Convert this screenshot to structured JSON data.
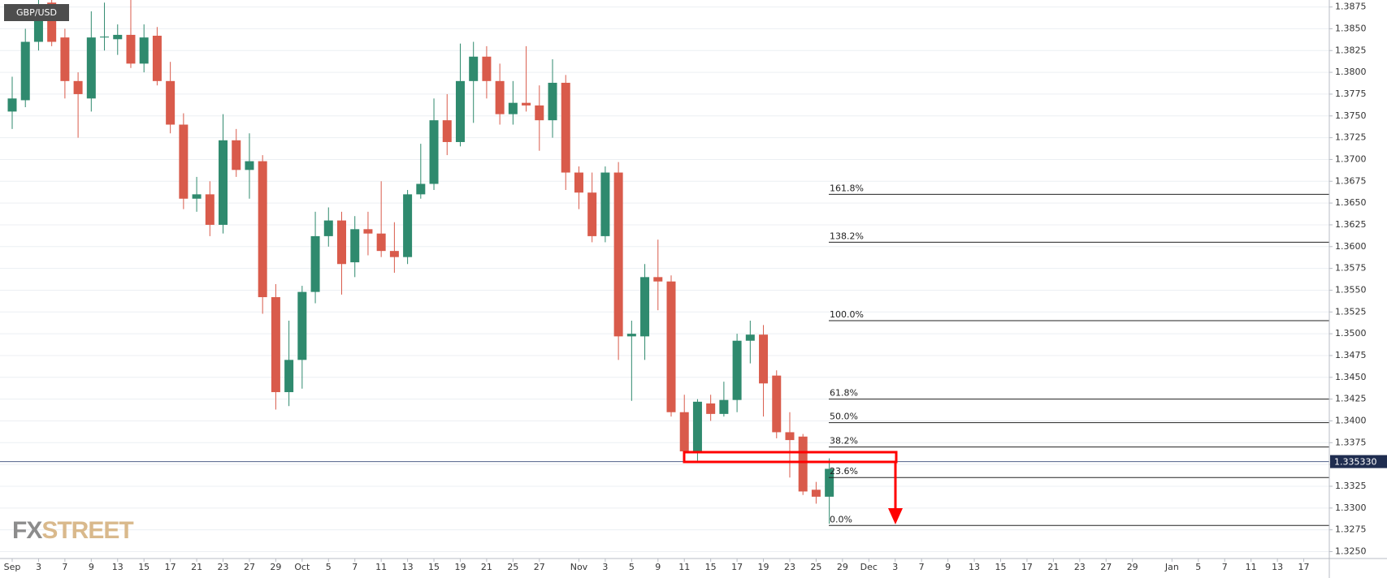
{
  "chart_data": {
    "type": "candlestick",
    "title": "GBP/USD",
    "watermark": [
      "FX",
      "STREET"
    ],
    "categories": [
      "Sep",
      null,
      "3",
      null,
      "7",
      null,
      "9",
      null,
      "13",
      null,
      "15",
      null,
      "17",
      null,
      "21",
      null,
      "23",
      null,
      "27",
      null,
      "29",
      null,
      "Oct",
      null,
      "5",
      null,
      "7",
      null,
      "11",
      null,
      "13",
      null,
      "15",
      null,
      "19",
      null,
      "21",
      null,
      "25",
      null,
      "27",
      null,
      null,
      "Nov",
      null,
      "3",
      null,
      "5",
      null,
      "9",
      null,
      "11",
      null,
      "15",
      null,
      "17",
      null,
      "19",
      null,
      "23",
      null,
      "25",
      null,
      "29",
      null,
      "Dec",
      null,
      "3",
      null,
      "7",
      null,
      "9",
      null,
      "13",
      null,
      "15",
      null,
      "17",
      null,
      "21",
      null,
      "23",
      null,
      "27",
      null,
      "29",
      null,
      null,
      "Jan",
      null,
      "5",
      null,
      "7",
      null,
      "11",
      null,
      "13",
      null,
      "17"
    ],
    "open": [
      1.3755,
      1.3768,
      1.3835,
      1.388,
      1.384,
      1.379,
      1.377,
      1.384,
      1.3838,
      1.3843,
      1.381,
      1.3842,
      1.379,
      1.374,
      1.3655,
      1.366,
      1.3625,
      1.3722,
      1.3688,
      1.3698,
      1.3542,
      1.3433,
      1.347,
      1.3548,
      1.3612,
      1.363,
      1.3582,
      1.362,
      1.3615,
      1.3595,
      1.3588,
      1.366,
      1.3672,
      1.3745,
      1.372,
      1.379,
      1.3818,
      1.379,
      1.3752,
      1.3765,
      1.3762,
      1.3745,
      1.3788,
      1.3685,
      1.3662,
      1.3612,
      1.3685,
      1.3497,
      1.3497,
      1.3565,
      1.356,
      1.341,
      1.3365,
      1.342,
      1.3408,
      1.3424,
      1.3492,
      1.3499,
      1.3452,
      1.3387,
      1.3382,
      1.3321,
      1.3313,
      null,
      null,
      null,
      null,
      null,
      null,
      null,
      null,
      null,
      null,
      null,
      null,
      null,
      null,
      null,
      null,
      null,
      null,
      null,
      null,
      null,
      null,
      null,
      null,
      null,
      null,
      null,
      null,
      null,
      null,
      null,
      null,
      null,
      null,
      null,
      null
    ],
    "high": [
      1.3795,
      1.385,
      1.3888,
      1.3895,
      1.385,
      1.38,
      1.387,
      1.388,
      1.3855,
      1.389,
      1.3855,
      1.3852,
      1.3812,
      1.3753,
      1.368,
      1.3675,
      1.3752,
      1.3735,
      1.373,
      1.3705,
      1.3557,
      1.3515,
      1.3555,
      1.364,
      1.3645,
      1.364,
      1.3635,
      1.364,
      1.3675,
      1.3628,
      1.3665,
      1.3718,
      1.377,
      1.3775,
      1.3833,
      1.3835,
      1.383,
      1.381,
      1.379,
      1.383,
      1.3785,
      1.3815,
      1.3797,
      1.3692,
      1.3685,
      1.3692,
      1.3697,
      1.3515,
      1.358,
      1.3608,
      1.3567,
      1.343,
      1.3425,
      1.343,
      1.3445,
      1.35,
      1.3515,
      1.351,
      1.3458,
      1.341,
      1.3385,
      1.333,
      1.3357,
      null,
      null,
      null,
      null,
      null,
      null,
      null,
      null,
      null,
      null,
      null,
      null,
      null,
      null,
      null,
      null,
      null,
      null,
      null,
      null,
      null,
      null,
      null,
      null,
      null,
      null,
      null,
      null,
      null,
      null,
      null,
      null,
      null,
      null,
      null,
      null
    ],
    "low": [
      1.3735,
      1.376,
      1.3825,
      1.383,
      1.377,
      1.3725,
      1.3755,
      1.3825,
      1.382,
      1.3805,
      1.38,
      1.3785,
      1.373,
      1.3643,
      1.364,
      1.3612,
      1.3615,
      1.368,
      1.3655,
      1.3523,
      1.3413,
      1.3417,
      1.3437,
      1.3535,
      1.36,
      1.3545,
      1.3565,
      1.359,
      1.3588,
      1.357,
      1.358,
      1.3655,
      1.3665,
      1.3705,
      1.3715,
      1.3742,
      1.377,
      1.374,
      1.374,
      1.3755,
      1.371,
      1.3725,
      1.3665,
      1.3643,
      1.3605,
      1.3605,
      1.347,
      1.3423,
      1.347,
      1.3527,
      1.3405,
      1.3353,
      1.3353,
      1.34,
      1.3405,
      1.341,
      1.3466,
      1.3405,
      1.338,
      1.3335,
      1.3315,
      1.3305,
      1.3282,
      null,
      null,
      null,
      null,
      null,
      null,
      null,
      null,
      null,
      null,
      null,
      null,
      null,
      null,
      null,
      null,
      null,
      null,
      null,
      null,
      null,
      null,
      null,
      null,
      null,
      null,
      null,
      null,
      null,
      null,
      null,
      null,
      null,
      null,
      null,
      null
    ],
    "close": [
      1.377,
      1.3835,
      1.3865,
      1.3835,
      1.379,
      1.3775,
      1.384,
      1.3841,
      1.3843,
      1.381,
      1.384,
      1.379,
      1.374,
      1.3655,
      1.366,
      1.3625,
      1.3722,
      1.3688,
      1.3698,
      1.3542,
      1.3433,
      1.347,
      1.3548,
      1.3612,
      1.363,
      1.358,
      1.362,
      1.3615,
      1.3595,
      1.3588,
      1.366,
      1.3672,
      1.3745,
      1.372,
      1.379,
      1.3818,
      1.379,
      1.3752,
      1.3765,
      1.3762,
      1.3745,
      1.3788,
      1.3685,
      1.3662,
      1.3612,
      1.3685,
      1.3497,
      1.35,
      1.3565,
      1.356,
      1.341,
      1.3365,
      1.3422,
      1.3408,
      1.3424,
      1.3492,
      1.3499,
      1.3443,
      1.3387,
      1.3378,
      1.3319,
      1.3313,
      1.3345,
      null,
      null,
      null,
      null,
      null,
      null,
      null,
      null,
      null,
      null,
      null,
      null,
      null,
      null,
      null,
      null,
      null,
      null,
      null,
      null,
      null,
      null,
      null,
      null,
      null,
      null,
      null,
      null,
      null,
      null,
      null,
      null,
      null,
      null,
      null,
      null
    ],
    "up_color": "#2f8a6e",
    "down_color": "#d95b4b",
    "ylim": [
      1.3243,
      1.3883
    ],
    "yticks": [
      {
        "value": 1.325,
        "label": "1.3250"
      },
      1.3275,
      {
        "value": 1.33,
        "label": "1.3300"
      },
      1.3325,
      {
        "value": 1.335,
        "label": "1.3350"
      },
      1.3375,
      {
        "value": 1.34,
        "label": "1.3400"
      },
      1.3425,
      {
        "value": 1.345,
        "label": "1.3450"
      },
      1.3475,
      {
        "value": 1.35,
        "label": "1.3500"
      },
      1.3525,
      {
        "value": 1.355,
        "label": "1.3550"
      },
      1.3575,
      {
        "value": 1.36,
        "label": "1.3600"
      },
      1.3625,
      {
        "value": 1.365,
        "label": "1.3650"
      },
      1.3675,
      {
        "value": 1.37,
        "label": "1.3700"
      },
      1.3725,
      {
        "value": 1.375,
        "label": "1.3750"
      },
      1.3775,
      {
        "value": 1.38,
        "label": "1.3800"
      },
      1.3825,
      {
        "value": 1.385,
        "label": "1.3850"
      },
      1.3875
    ],
    "grid": true,
    "price_line": {
      "value": 1.33533,
      "label": "1.335330"
    },
    "fib_levels": [
      {
        "label": "161.8%",
        "value": 1.366
      },
      {
        "label": "138.2%",
        "value": 1.3605
      },
      {
        "label": "100.0%",
        "value": 1.3515
      },
      {
        "label": "61.8%",
        "value": 1.3425
      },
      {
        "label": "50.0%",
        "value": 1.3398
      },
      {
        "label": "38.2%",
        "value": 1.337
      },
      {
        "label": "23.6%",
        "value": 1.3335
      },
      {
        "label": "0.0%",
        "value": 1.328
      }
    ]
  }
}
